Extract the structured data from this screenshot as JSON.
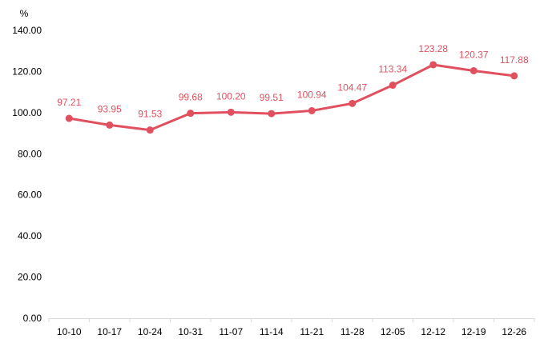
{
  "chart_data": {
    "type": "line",
    "unit": "%",
    "categories": [
      "10-10",
      "10-17",
      "10-24",
      "10-31",
      "11-07",
      "11-14",
      "11-21",
      "11-28",
      "12-05",
      "12-12",
      "12-19",
      "12-26"
    ],
    "series": [
      {
        "values": [
          97.21,
          93.95,
          91.53,
          99.68,
          100.2,
          99.51,
          100.94,
          104.47,
          113.34,
          123.28,
          120.37,
          117.88
        ],
        "labels": [
          "97.21",
          "93.95",
          "91.53",
          "99.68",
          "100.20",
          "99.51",
          "100.94",
          "104.47",
          "113.34",
          "123.28",
          "120.37",
          "117.88"
        ]
      }
    ],
    "ylim": [
      0,
      140
    ],
    "yticks": [
      "0.00",
      "20.00",
      "40.00",
      "60.00",
      "80.00",
      "100.00",
      "120.00",
      "140.00"
    ],
    "ytick_values": [
      0,
      20,
      40,
      60,
      80,
      100,
      120,
      140
    ],
    "grid": false,
    "legend": "none",
    "colors": {
      "line": "#e0505f",
      "label": "#e0505f",
      "axis": "#d9d9d9"
    }
  }
}
